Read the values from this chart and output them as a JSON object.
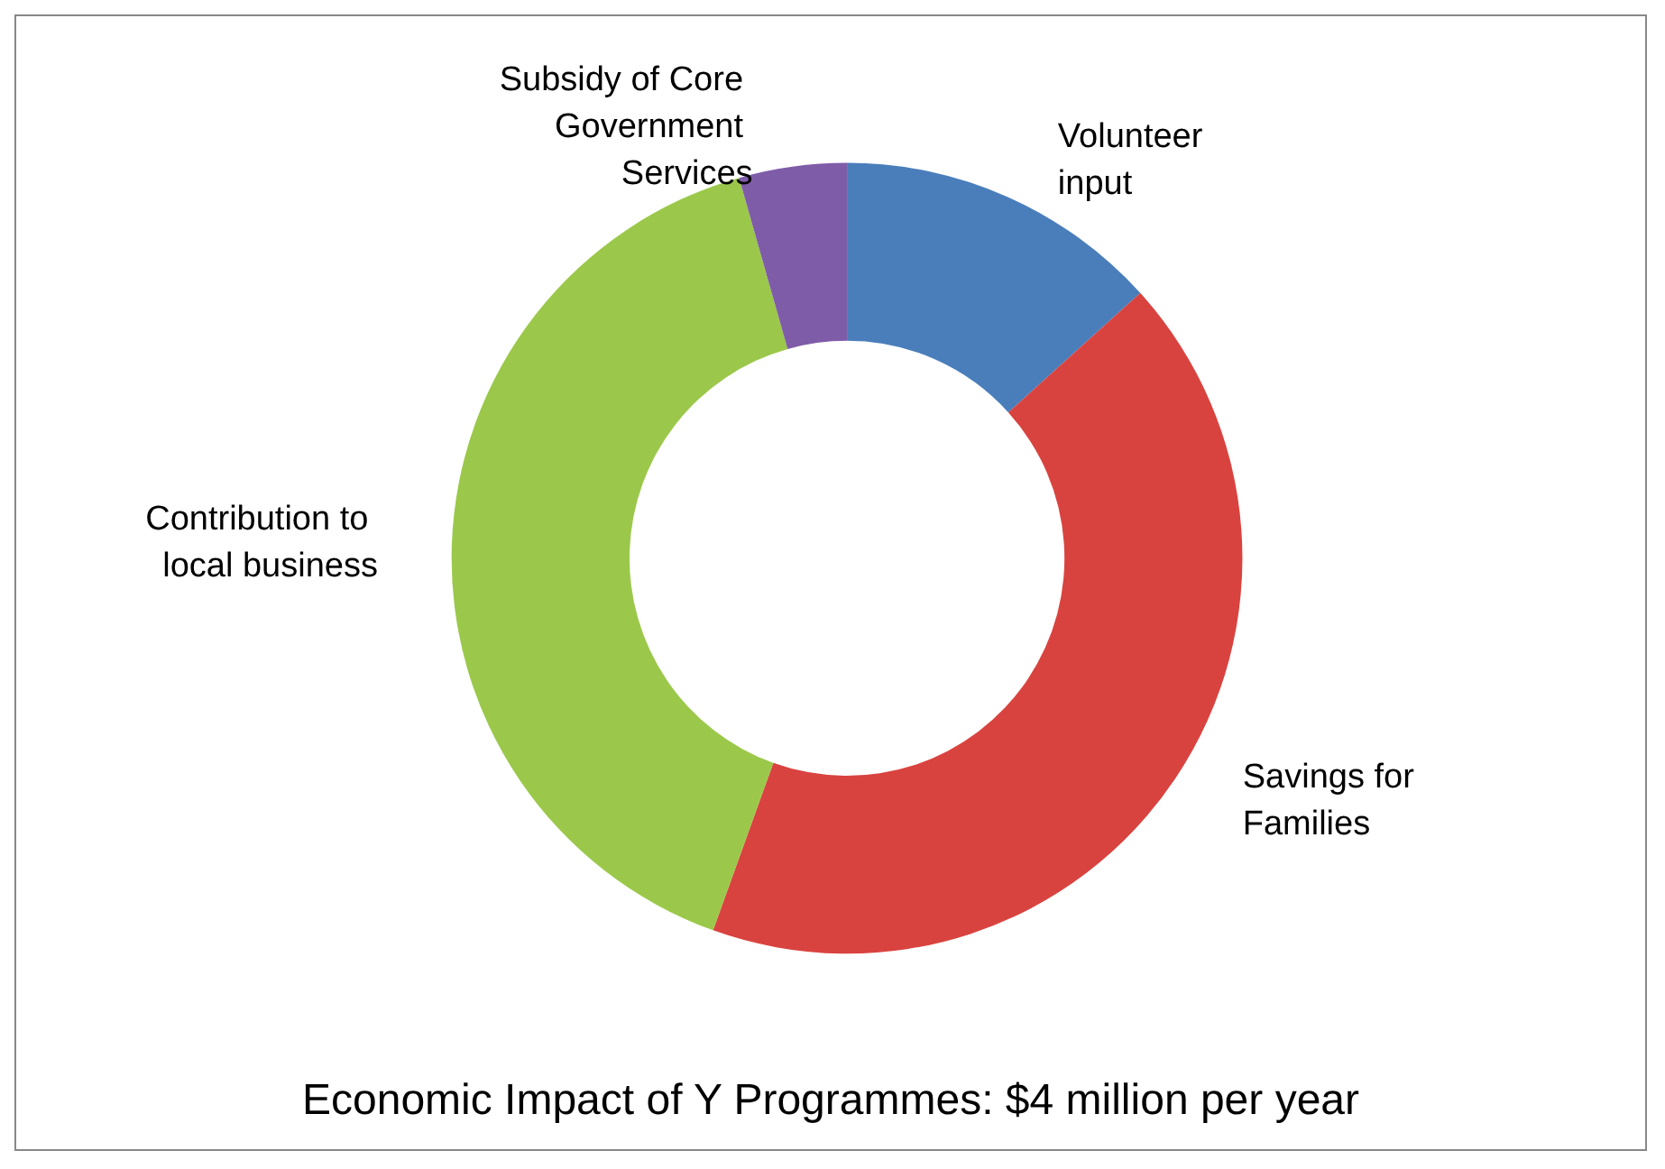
{
  "chart_data": {
    "type": "donut",
    "title": "Economic Impact of Y Programmes: $4 million per year",
    "categories": [
      "Volunteer input",
      "Savings for Families",
      "Contribution to local business",
      "Subsidy of Core Government Services"
    ],
    "values": [
      13.3,
      42.2,
      40.1,
      4.4
    ],
    "colors": [
      "#4a7ebb",
      "#d9433f",
      "#9bc84a",
      "#7f5ca8"
    ],
    "legend": false
  }
}
